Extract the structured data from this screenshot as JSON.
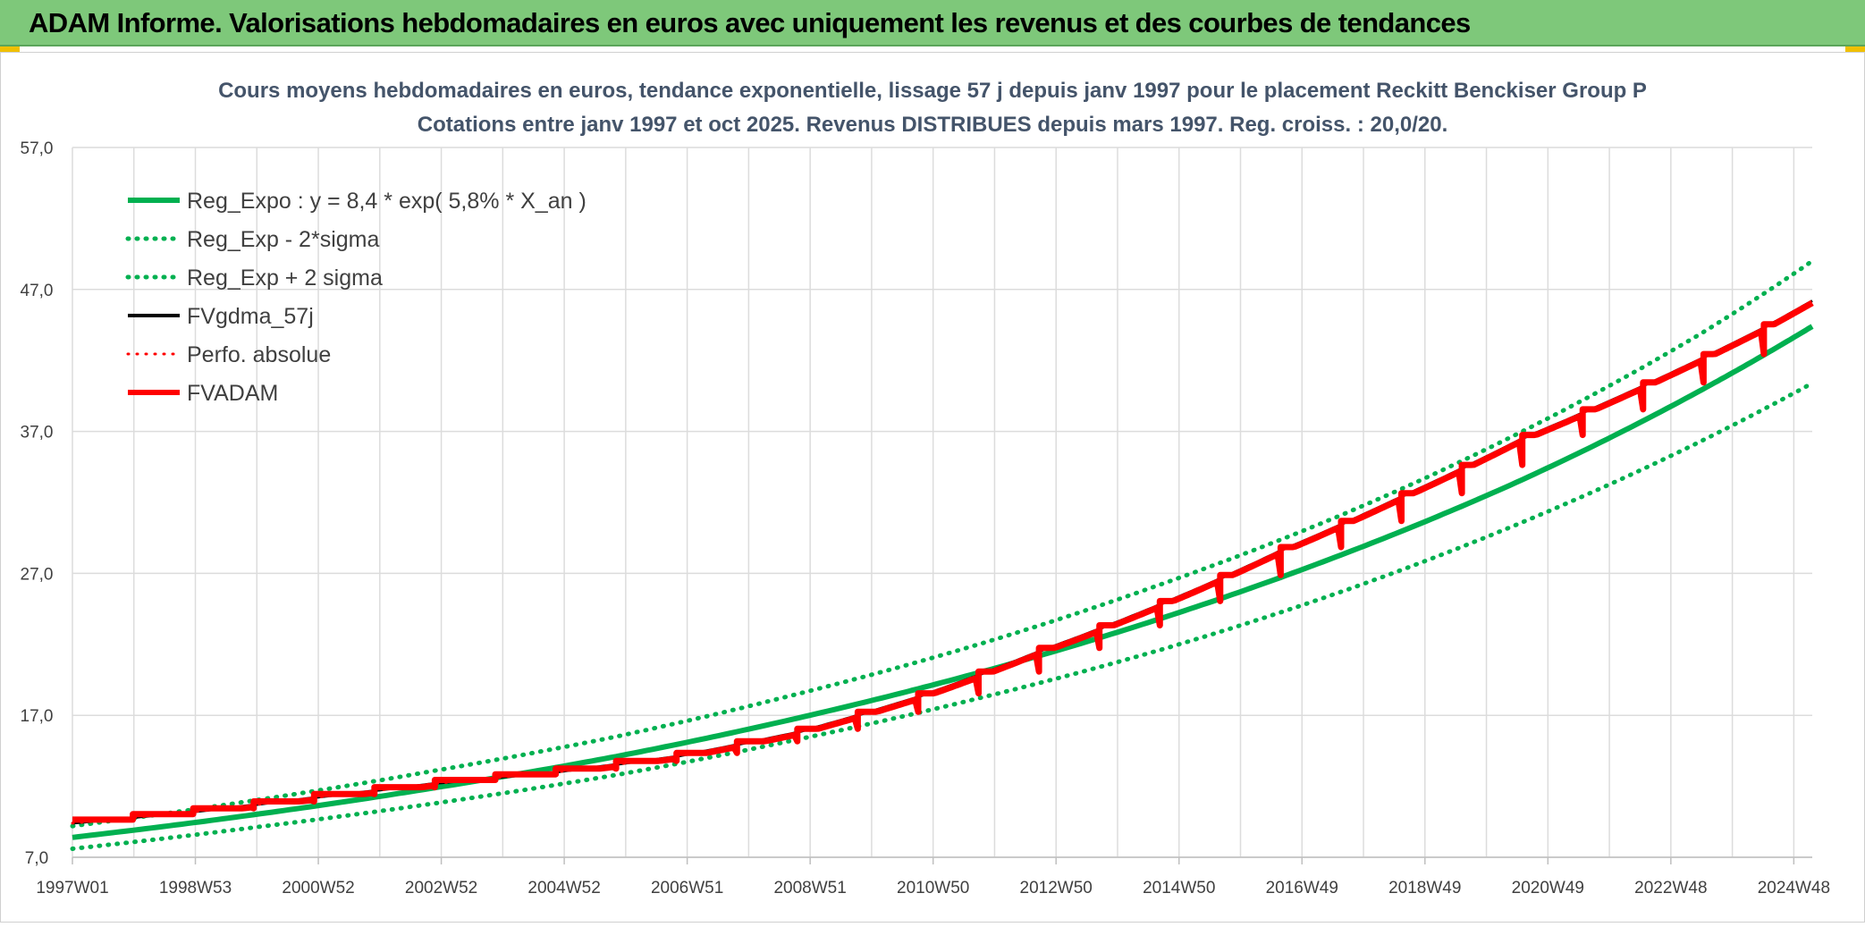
{
  "header": {
    "title": "ADAM Informe. Valorisations hebdomadaires en euros avec uniquement les revenus et des courbes de tendances"
  },
  "chart_data": {
    "type": "line",
    "title": "Cours moyens hebdomadaires en euros, tendance exponentielle, lissage 57 j depuis janv 1997 pour le placement Reckitt Benckiser Group P",
    "subtitle": "Cotations entre janv 1997 et oct 2025. Revenus DISTRIBUES depuis mars 1997. Reg. croiss. : 20,0/20.",
    "xlabel": "",
    "ylabel": "",
    "ylim": [
      7.0,
      57.0
    ],
    "y_ticks": [
      "7,0",
      "17,0",
      "27,0",
      "37,0",
      "47,0",
      "57,0"
    ],
    "x_range": [
      1997.0,
      2025.8
    ],
    "x_tick_labels": [
      "1997W01",
      "1998W53",
      "2000W52",
      "2002W52",
      "2004W52",
      "2006W51",
      "2008W51",
      "2010W50",
      "2012W50",
      "2014W50",
      "2016W49",
      "2018W49",
      "2020W49",
      "2022W48",
      "2024W48"
    ],
    "grid": true,
    "legend_position": "top-left",
    "colors": {
      "reg": "#00b050",
      "smooth": "#000000",
      "perfo": "#ff0000",
      "adam": "#ff0000"
    },
    "series": [
      {
        "name": "Reg_Expo : y = 8,4 * exp( 5,8% *  X_an )",
        "style": "solid",
        "x": [
          1997.0,
          2000.0,
          2003.0,
          2006.0,
          2009.0,
          2012.0,
          2015.0,
          2018.0,
          2021.0,
          2024.0,
          2025.8
        ],
        "y": [
          8.4,
          10.0,
          11.9,
          14.1,
          16.8,
          20.0,
          23.8,
          28.3,
          33.6,
          40.0,
          44.4
        ]
      },
      {
        "name": "Reg_Exp - 2*sigma",
        "style": "dotted",
        "x": [
          1997.0,
          2000.0,
          2003.0,
          2006.0,
          2009.0,
          2012.0,
          2015.0,
          2018.0,
          2021.0,
          2024.0,
          2025.8
        ],
        "y": [
          7.6,
          9.1,
          10.8,
          12.8,
          15.3,
          18.2,
          21.6,
          25.7,
          30.6,
          36.4,
          40.4
        ]
      },
      {
        "name": "Reg_Exp + 2 sigma",
        "style": "dotted",
        "x": [
          1997.0,
          2000.0,
          2003.0,
          2006.0,
          2009.0,
          2012.0,
          2015.0,
          2018.0,
          2021.0,
          2024.0,
          2025.8
        ],
        "y": [
          9.2,
          11.0,
          13.1,
          15.5,
          18.5,
          22.0,
          26.2,
          31.1,
          37.0,
          44.0,
          49.0
        ]
      },
      {
        "name": "FVgdma_57j",
        "style": "solid",
        "x": [
          1997.0,
          1999.0,
          2001.0,
          2003.0,
          2005.0,
          2007.0,
          2009.0,
          2011.0,
          2013.0,
          2015.0,
          2017.0,
          2019.0,
          2021.0,
          2023.0,
          2025.0,
          2025.8
        ],
        "y": [
          9.4,
          10.2,
          11.2,
          12.2,
          13.0,
          14.1,
          15.8,
          18.3,
          21.5,
          24.8,
          28.6,
          32.4,
          36.5,
          40.2,
          44.3,
          46.2
        ]
      },
      {
        "name": "Perfo. absolue",
        "style": "dotted",
        "x": [
          1997.0,
          1999.0,
          2001.0,
          2003.0,
          2005.0,
          2007.0,
          2009.0,
          2011.0,
          2013.0,
          2015.0,
          2017.0,
          2019.0,
          2021.0,
          2023.0,
          2025.0,
          2025.8
        ],
        "y": [
          9.4,
          10.2,
          11.2,
          12.2,
          13.0,
          14.1,
          15.8,
          18.3,
          21.5,
          24.8,
          28.6,
          32.4,
          36.5,
          40.2,
          44.3,
          46.2
        ]
      },
      {
        "name": "FVADAM",
        "style": "steps",
        "x": [
          1997.0,
          1999.0,
          2001.0,
          2003.0,
          2005.0,
          2007.0,
          2009.0,
          2011.0,
          2013.0,
          2015.0,
          2017.0,
          2019.0,
          2021.0,
          2023.0,
          2025.0,
          2025.8
        ],
        "y": [
          9.4,
          10.2,
          11.2,
          12.2,
          13.0,
          14.1,
          15.8,
          18.3,
          21.5,
          24.8,
          28.6,
          32.4,
          36.5,
          40.2,
          44.3,
          46.2
        ]
      }
    ]
  }
}
